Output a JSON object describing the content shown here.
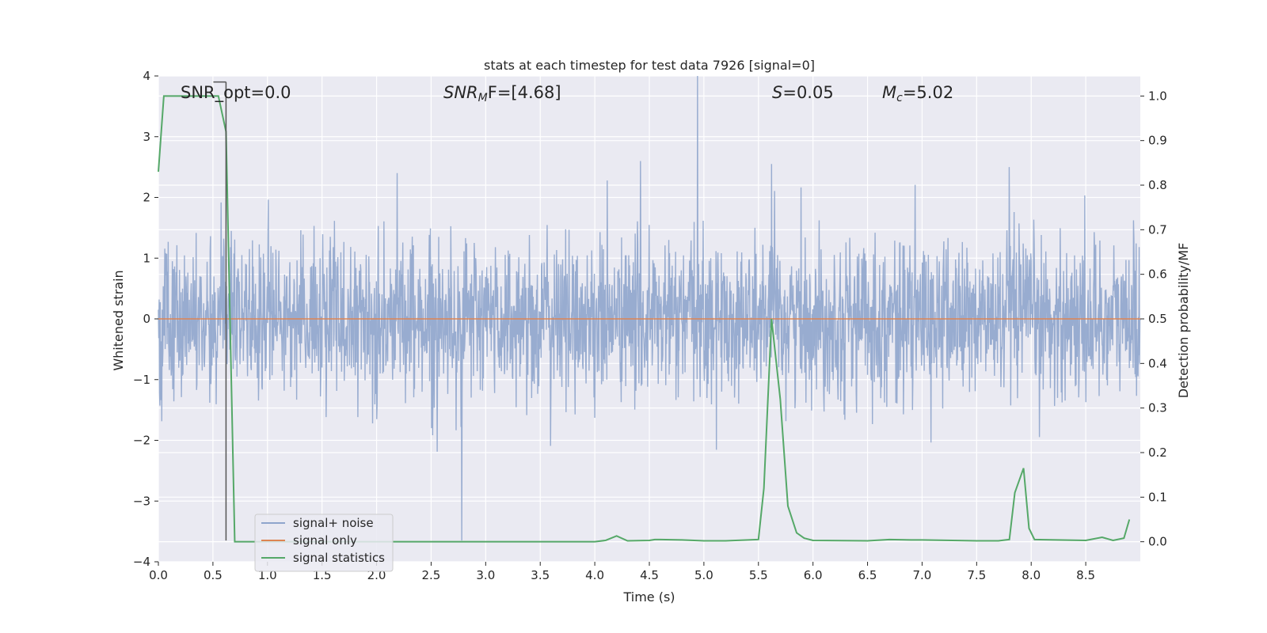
{
  "chart_data": {
    "type": "line",
    "title": "stats at each timestep for test data 7926 [signal=0]",
    "xlabel": "Time (s)",
    "ylabel": "Whitened strain",
    "y2label": "Detection probability/MF",
    "xlim": [
      0.0,
      9.0
    ],
    "ylim": [
      -4.0,
      4.0
    ],
    "y2lim": [
      -0.045,
      1.045
    ],
    "x_ticks": [
      "0.0",
      "0.5",
      "1.0",
      "1.5",
      "2.0",
      "2.5",
      "3.0",
      "3.5",
      "4.0",
      "4.5",
      "5.0",
      "5.5",
      "6.0",
      "6.5",
      "7.0",
      "7.5",
      "8.0",
      "8.5"
    ],
    "y_ticks": [
      "4",
      "3",
      "2",
      "1",
      "0",
      "−1",
      "−2",
      "−3",
      "−4"
    ],
    "y2_ticks": [
      "1.0",
      "0.9",
      "0.8",
      "0.7",
      "0.6",
      "0.5",
      "0.4",
      "0.3",
      "0.2",
      "0.1",
      "0.0"
    ],
    "grid": true,
    "legend_position": "lower-left",
    "annotations": {
      "snr_opt": "SNR_opt=0.0",
      "snr_mf_name": "SNR",
      "snr_mf_sub": "M",
      "snr_mf_rest": "F=[4.68]",
      "s_name": "S",
      "s_rest": "=0.05",
      "mc_name": "M",
      "mc_sub": "c",
      "mc_rest": "=5.02"
    },
    "marker_x": 0.62,
    "series": [
      {
        "name": "signal+ noise",
        "color": "#8fa5cc",
        "description_axis": "left",
        "noise_sigma": 0.9,
        "peaks": [
          {
            "x": 4.94,
            "y": 4.0
          },
          {
            "x": 2.78,
            "y": -3.65
          },
          {
            "x": 5.62,
            "y": 2.55
          },
          {
            "x": 4.42,
            "y": 2.6
          },
          {
            "x": 7.8,
            "y": 2.5
          }
        ]
      },
      {
        "name": "signal only",
        "color": "#dd8452",
        "x": [
          0.0,
          9.0
        ],
        "y": [
          0.0,
          0.0
        ]
      },
      {
        "name": "signal statistics",
        "color": "#55a868",
        "axis": "right",
        "x": [
          0.0,
          0.05,
          0.1,
          0.2,
          0.3,
          0.4,
          0.5,
          0.55,
          0.62,
          0.7,
          1.0,
          2.0,
          3.0,
          4.0,
          4.1,
          4.2,
          4.3,
          4.5,
          4.55,
          4.6,
          4.8,
          5.0,
          5.2,
          5.5,
          5.55,
          5.62,
          5.7,
          5.77,
          5.85,
          5.92,
          6.0,
          6.5,
          6.7,
          6.9,
          7.0,
          7.5,
          7.7,
          7.8,
          7.85,
          7.93,
          7.98,
          8.03,
          8.5,
          8.65,
          8.75,
          8.85,
          8.9
        ],
        "y": [
          0.83,
          1.0,
          1.0,
          1.0,
          1.0,
          1.0,
          1.0,
          1.0,
          0.92,
          0.0,
          0.0,
          0.0,
          0.0,
          0.0,
          0.003,
          0.013,
          0.002,
          0.003,
          0.005,
          0.005,
          0.004,
          0.002,
          0.002,
          0.005,
          0.12,
          0.5,
          0.32,
          0.08,
          0.02,
          0.008,
          0.003,
          0.002,
          0.005,
          0.004,
          0.004,
          0.002,
          0.002,
          0.005,
          0.11,
          0.165,
          0.03,
          0.005,
          0.003,
          0.01,
          0.003,
          0.008,
          0.05
        ]
      }
    ]
  }
}
